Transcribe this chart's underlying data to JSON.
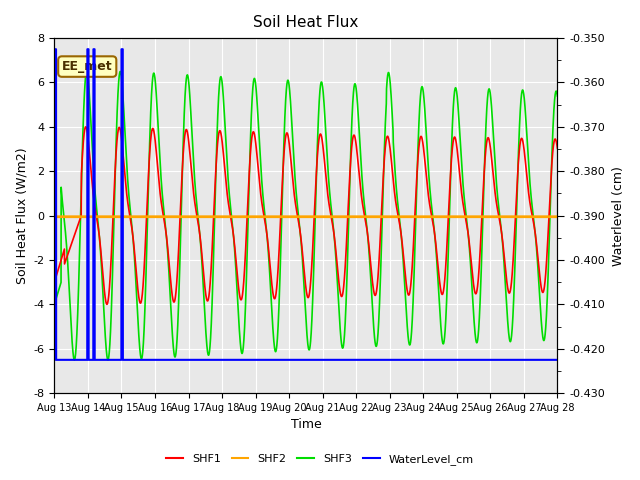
{
  "title": "Soil Heat Flux",
  "ylabel_left": "Soil Heat Flux (W/m2)",
  "ylabel_right": "Waterlevel (cm)",
  "xlabel": "Time",
  "ylim_left": [
    -8,
    8
  ],
  "ylim_right": [
    -0.43,
    -0.35
  ],
  "date_start": 13,
  "date_end": 28,
  "annotation_text": "EE_met",
  "fig_bg_color": "#ffffff",
  "plot_bg_color": "#e8e8e8",
  "shf1_color": "#ff0000",
  "shf2_color": "#ffa500",
  "shf3_color": "#00dd00",
  "water_color": "#0000ff",
  "grid_color": "#ffffff",
  "legend_items": [
    "SHF1",
    "SHF2",
    "SHF3",
    "WaterLevel_cm"
  ],
  "n_days": 15,
  "samples_per_day": 288
}
